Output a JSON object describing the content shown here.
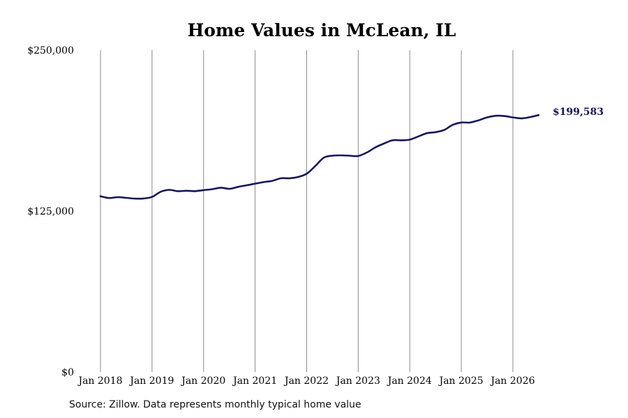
{
  "source_note": "Source: Zillow. Data represents monthly typical home value",
  "colors": {
    "line": "#141464",
    "grid": "#8a8a8a",
    "end_label": "#141464"
  },
  "chart_data": {
    "type": "line",
    "title": "Home Values in McLean, IL",
    "xlabel": "",
    "ylabel": "",
    "ylim": [
      0,
      250000
    ],
    "yticks": [
      0,
      125000,
      250000
    ],
    "ytick_labels": [
      "$0",
      "$125,000",
      "$250,000"
    ],
    "xlim": [
      "2018-01",
      "2026-08"
    ],
    "xticks": [
      "2018-01",
      "2019-01",
      "2020-01",
      "2021-01",
      "2022-01",
      "2023-01",
      "2024-01",
      "2025-01",
      "2026-01"
    ],
    "xtick_labels": [
      "Jan 2018",
      "Jan 2019",
      "Jan 2020",
      "Jan 2021",
      "Jan 2022",
      "Jan 2023",
      "Jan 2024",
      "Jan 2025",
      "Jan 2026"
    ],
    "grid": {
      "vertical": true,
      "horizontal": false
    },
    "end_label": "$199,583",
    "series": [
      {
        "points": [
          [
            "2018-01",
            136500
          ],
          [
            "2018-03",
            135200
          ],
          [
            "2018-05",
            135800
          ],
          [
            "2018-07",
            135300
          ],
          [
            "2018-09",
            134700
          ],
          [
            "2018-11",
            134800
          ],
          [
            "2019-01",
            136000
          ],
          [
            "2019-03",
            140000
          ],
          [
            "2019-05",
            141500
          ],
          [
            "2019-07",
            140500
          ],
          [
            "2019-09",
            140800
          ],
          [
            "2019-11",
            140500
          ],
          [
            "2020-01",
            141300
          ],
          [
            "2020-03",
            142000
          ],
          [
            "2020-05",
            143200
          ],
          [
            "2020-07",
            142300
          ],
          [
            "2020-09",
            143800
          ],
          [
            "2020-11",
            145000
          ],
          [
            "2021-01",
            146300
          ],
          [
            "2021-03",
            147500
          ],
          [
            "2021-05",
            148500
          ],
          [
            "2021-07",
            150500
          ],
          [
            "2021-09",
            150500
          ],
          [
            "2021-11",
            151500
          ],
          [
            "2022-01",
            154000
          ],
          [
            "2022-03",
            160000
          ],
          [
            "2022-05",
            166500
          ],
          [
            "2022-07",
            168000
          ],
          [
            "2022-09",
            168300
          ],
          [
            "2022-11",
            168000
          ],
          [
            "2023-01",
            167800
          ],
          [
            "2023-03",
            170500
          ],
          [
            "2023-05",
            174500
          ],
          [
            "2023-07",
            177500
          ],
          [
            "2023-09",
            180000
          ],
          [
            "2023-11",
            180000
          ],
          [
            "2024-01",
            180500
          ],
          [
            "2024-03",
            183000
          ],
          [
            "2024-05",
            185500
          ],
          [
            "2024-07",
            186300
          ],
          [
            "2024-09",
            188000
          ],
          [
            "2024-11",
            192000
          ],
          [
            "2025-01",
            193800
          ],
          [
            "2025-03",
            193800
          ],
          [
            "2025-05",
            195500
          ],
          [
            "2025-07",
            197800
          ],
          [
            "2025-09",
            199000
          ],
          [
            "2025-11",
            198800
          ],
          [
            "2026-01",
            197800
          ],
          [
            "2026-03",
            197000
          ],
          [
            "2026-05",
            198000
          ],
          [
            "2026-07",
            199583
          ]
        ]
      }
    ]
  }
}
